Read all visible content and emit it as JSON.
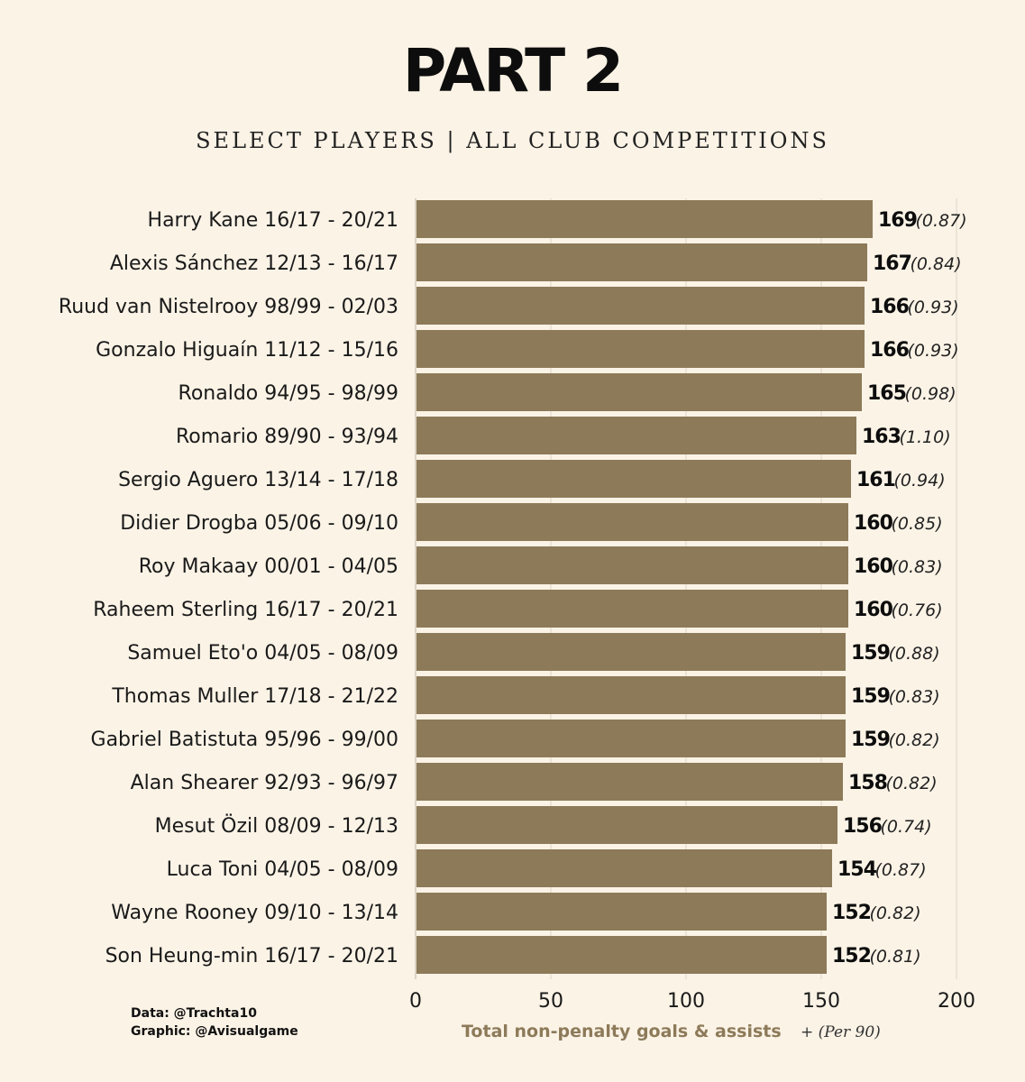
{
  "title": "PART 2",
  "subtitle": "SELECT PLAYERS  |  ALL CLUB COMPETITIONS",
  "credits": {
    "data": "Data: @Trachta10",
    "graphic": "Graphic: @Avisualgame"
  },
  "colors": {
    "background": "#fbf3e6",
    "bar": "#8d7a59",
    "xlabel_main": "#8d7a59",
    "text": "#111111"
  },
  "chart_data": {
    "type": "bar",
    "orientation": "horizontal",
    "categories": [
      "Harry Kane 16/17 - 20/21",
      "Alexis Sánchez 12/13 - 16/17",
      "Ruud van Nistelrooy 98/99 - 02/03",
      "Gonzalo Higuaín 11/12 - 15/16",
      "Ronaldo 94/95 - 98/99",
      "Romario 89/90 - 93/94",
      "Sergio Aguero 13/14 - 17/18",
      "Didier Drogba 05/06 - 09/10",
      "Roy Makaay 00/01 - 04/05",
      "Raheem Sterling 16/17 - 20/21",
      "Samuel Eto'o 04/05 - 08/09",
      "Thomas Muller 17/18 - 21/22",
      "Gabriel Batistuta 95/96 - 99/00",
      "Alan Shearer 92/93 - 96/97",
      "Mesut Özil 08/09 - 12/13",
      "Luca Toni 04/05 - 08/09",
      "Wayne Rooney 09/10 - 13/14",
      "Son Heung-min 16/17 - 20/21"
    ],
    "values": [
      169,
      167,
      166,
      166,
      165,
      163,
      161,
      160,
      160,
      160,
      159,
      159,
      159,
      158,
      156,
      154,
      152,
      152
    ],
    "per90_labels": [
      "(0.87)",
      "(0.84)",
      "(0.93)",
      "(0.93)",
      "(0.98)",
      "(1.10)",
      "(0.94)",
      "(0.85)",
      "(0.83)",
      "(0.76)",
      "(0.88)",
      "(0.83)",
      "(0.82)",
      "(0.82)",
      "(0.74)",
      "(0.87)",
      "(0.82)",
      "(0.81)"
    ],
    "xlim": [
      0,
      200
    ],
    "xticks": [
      0,
      50,
      100,
      150,
      200
    ],
    "xlabel_main": "Total non-penalty goals & assists",
    "xlabel_suffix": "+ (Per 90)",
    "grid": "vertical"
  }
}
